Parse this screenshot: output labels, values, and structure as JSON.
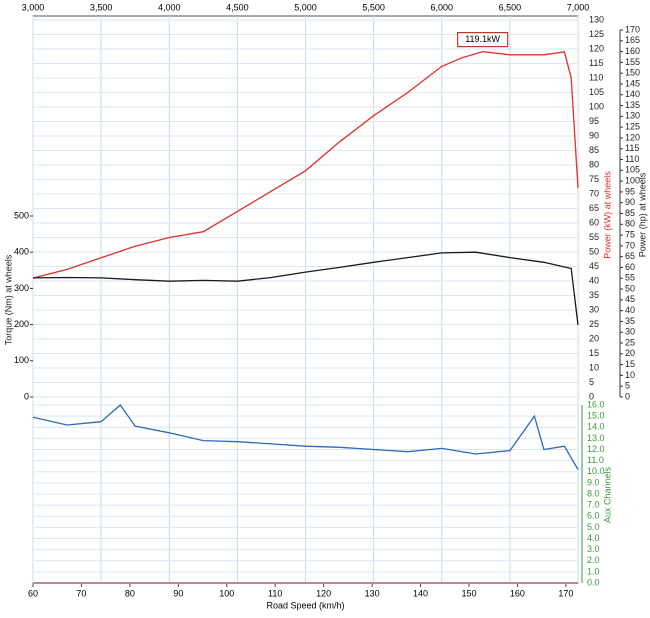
{
  "chart_data": {
    "type": "line",
    "grid": true,
    "xlim": [
      3000,
      7000
    ],
    "xticks": [
      {
        "value": 3000,
        "label": "3,000"
      },
      {
        "value": 3500,
        "label": "3,500"
      },
      {
        "value": 4000,
        "label": "4,000"
      },
      {
        "value": 4500,
        "label": "4,500"
      },
      {
        "value": 5000,
        "label": "5,000"
      },
      {
        "value": 5500,
        "label": "5,500"
      },
      {
        "value": 6000,
        "label": "6,000"
      },
      {
        "value": 6500,
        "label": "6,500"
      },
      {
        "value": 7000,
        "label": "7,000"
      }
    ],
    "x2label": "Road Speed (km/h)",
    "x2lim": [
      60,
      172.5
    ],
    "x2ticks": [
      60,
      70,
      80,
      90,
      100,
      110,
      120,
      130,
      140,
      150,
      160,
      170
    ],
    "ylabel": "Power (kW) at wheels",
    "ycolor": "#e0302a",
    "ylim": [
      0,
      130
    ],
    "yticks": [
      0,
      5,
      10,
      15,
      20,
      25,
      30,
      35,
      40,
      45,
      50,
      55,
      60,
      65,
      70,
      75,
      80,
      85,
      90,
      95,
      100,
      105,
      110,
      115,
      120,
      125,
      130
    ],
    "y2label": "Power (hp) at wheels",
    "y2color": "#222222",
    "y2lim": [
      0,
      170
    ],
    "y2ticks": [
      0,
      5,
      10,
      15,
      20,
      25,
      30,
      35,
      40,
      45,
      50,
      55,
      60,
      65,
      70,
      75,
      80,
      85,
      90,
      95,
      100,
      105,
      110,
      115,
      120,
      125,
      130,
      135,
      140,
      145,
      150,
      155,
      160,
      165,
      170
    ],
    "y3label": "Torque (Nm) at wheels",
    "y3color": "#222222",
    "y3lim": [
      0,
      500
    ],
    "y3ticks": [
      0,
      100,
      200,
      300,
      400,
      500
    ],
    "y4label": "Aux Channels",
    "y4color": "#3a9a3a",
    "y4lim": [
      0,
      16
    ],
    "y4ticks": [
      {
        "value": 0,
        "label": "0.0"
      },
      {
        "value": 1,
        "label": "1.0"
      },
      {
        "value": 2,
        "label": "2.0"
      },
      {
        "value": 3,
        "label": "3.0"
      },
      {
        "value": 4,
        "label": "4.0"
      },
      {
        "value": 5,
        "label": "5.0"
      },
      {
        "value": 6,
        "label": "6.0"
      },
      {
        "value": 7,
        "label": "7.0"
      },
      {
        "value": 8,
        "label": "8.0"
      },
      {
        "value": 9,
        "label": "9.0"
      },
      {
        "value": 10,
        "label": "10.0"
      },
      {
        "value": 11,
        "label": "11.0"
      },
      {
        "value": 12,
        "label": "12.0"
      },
      {
        "value": 13,
        "label": "13.0"
      },
      {
        "value": 14,
        "label": "14.0"
      },
      {
        "value": 15,
        "label": "15.0"
      },
      {
        "value": 16,
        "label": "16.0"
      }
    ],
    "annotation": "119.1kW",
    "series": [
      {
        "color": "#e0302a",
        "axis": "y",
        "x": [
          3000,
          3250,
          3500,
          3750,
          4000,
          4250,
          4500,
          4750,
          5000,
          5250,
          5500,
          5750,
          6000,
          6150,
          6300,
          6500,
          6750,
          6900,
          6950,
          7000
        ],
        "values": [
          41,
          44,
          48,
          52,
          55,
          57,
          64,
          71,
          78,
          88,
          97,
          105,
          114,
          117,
          119.1,
          118,
          118,
          119,
          110,
          72
        ]
      },
      {
        "color": "#1a1a1a",
        "axis": "y3",
        "x": [
          3000,
          3250,
          3500,
          3750,
          4000,
          4250,
          4500,
          4750,
          5000,
          5250,
          5500,
          5750,
          6000,
          6250,
          6500,
          6750,
          6950,
          7000
        ],
        "values": [
          329,
          330,
          329,
          324,
          320,
          322,
          320,
          330,
          345,
          358,
          372,
          385,
          398,
          400,
          385,
          372,
          355,
          199
        ]
      },
      {
        "color": "#2f6ab8",
        "axis": "y4",
        "x": [
          3000,
          3250,
          3500,
          3640,
          3750,
          4000,
          4250,
          4500,
          4750,
          5000,
          5250,
          5500,
          5750,
          6000,
          6250,
          6500,
          6680,
          6750,
          6900,
          7000
        ],
        "values": [
          14.9,
          14.2,
          14.5,
          16.0,
          14.1,
          13.5,
          12.8,
          12.7,
          12.5,
          12.3,
          12.2,
          12.0,
          11.8,
          12.1,
          11.6,
          11.9,
          15.0,
          12.0,
          12.3,
          10.2
        ]
      }
    ]
  }
}
